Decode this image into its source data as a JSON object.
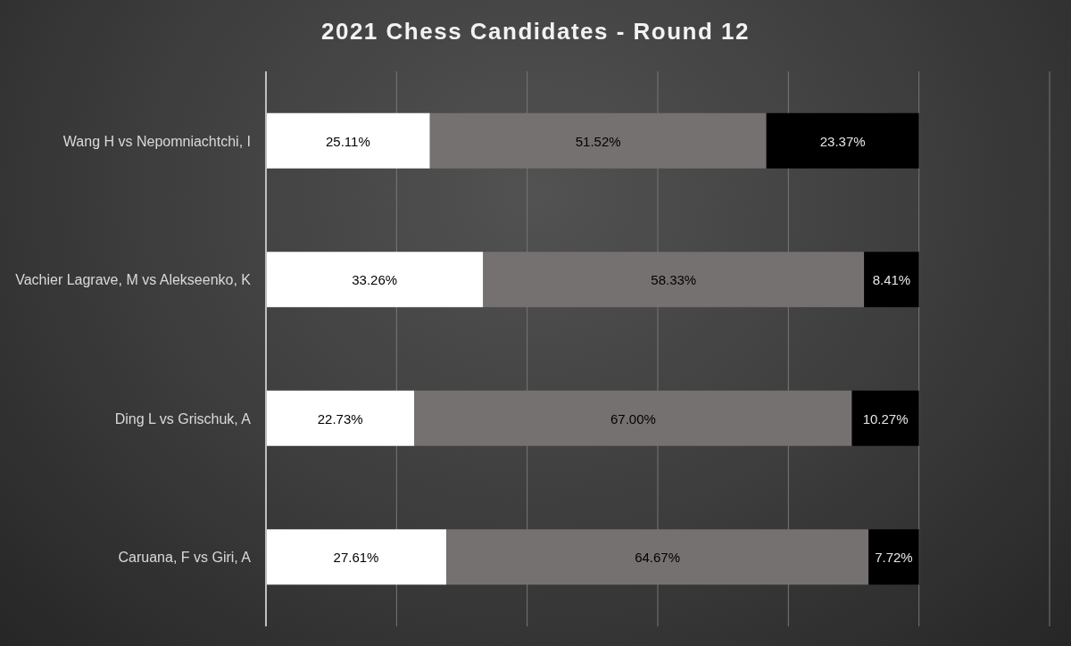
{
  "chart_data": {
    "type": "bar",
    "title": "2021 Chess Candidates - Round 12",
    "orientation": "horizontal",
    "stacked": true,
    "categories": [
      "Wang H vs Nepomniachtchi, I",
      "Vachier Lagrave, M vs Alekseenko, K",
      "Ding L vs Grischuk, A",
      "Caruana, F vs Giri, A"
    ],
    "series": [
      {
        "color": "#ffffff",
        "values": [
          25.11,
          33.26,
          22.73,
          27.61
        ],
        "value_labels": [
          "25.11%",
          "33.26%",
          "22.73%",
          "27.61%"
        ]
      },
      {
        "color": "#767171",
        "values": [
          51.52,
          58.33,
          67.0,
          64.67
        ],
        "value_labels": [
          "51.52%",
          "58.33%",
          "67.00%",
          "64.67%"
        ]
      },
      {
        "color": "#000000",
        "values": [
          23.37,
          8.41,
          10.27,
          7.72
        ],
        "value_labels": [
          "23.37%",
          "8.41%",
          "10.27%",
          "7.72%"
        ]
      }
    ],
    "xlim": [
      0,
      120
    ],
    "grid": "x",
    "tick_labels": "y"
  }
}
